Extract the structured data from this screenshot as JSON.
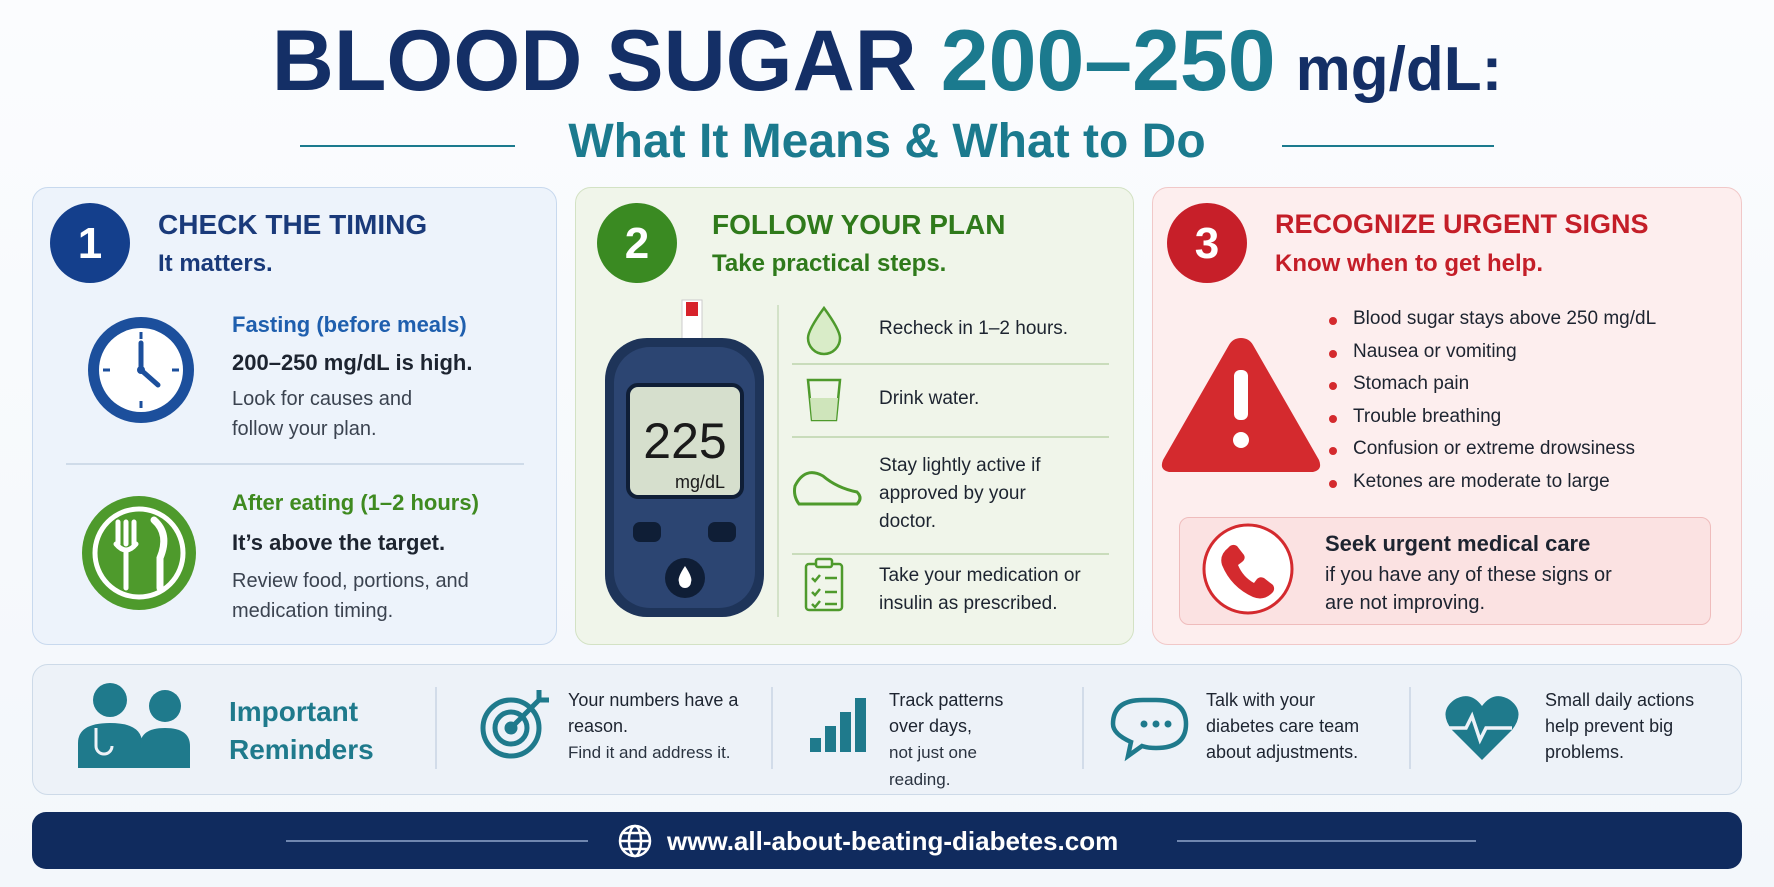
{
  "header": {
    "title_part1": "BLOOD SUGAR",
    "title_part2": "200–250",
    "title_part3": "mg/dL:",
    "subtitle": "What It Means & What to Do"
  },
  "panels": [
    {
      "number": "1",
      "title": "CHECK THE TIMING",
      "subtitle": "It matters.",
      "items": [
        {
          "heading": "Fasting (before meals)",
          "highlight": "200–250 mg/dL is high.",
          "text": "Look for causes and follow your plan."
        },
        {
          "heading": "After eating (1–2 hours)",
          "highlight": "It’s above the target.",
          "text": "Review food, portions, and medication timing."
        }
      ]
    },
    {
      "number": "2",
      "title": "FOLLOW YOUR PLAN",
      "subtitle": "Take practical steps.",
      "meter_reading": "225",
      "meter_unit": "mg/dL",
      "steps": [
        "Recheck in 1–2 hours.",
        "Drink water.",
        "Stay lightly active if approved by your doctor.",
        "Take your medication or insulin as prescribed."
      ]
    },
    {
      "number": "3",
      "title": "RECOGNIZE URGENT SIGNS",
      "subtitle": "Know when to get help.",
      "signs": [
        "Blood sugar stays above 250 mg/dL",
        "Nausea or vomiting",
        "Stomach pain",
        "Trouble breathing",
        "Confusion or extreme drowsiness",
        "Ketones are moderate to large"
      ],
      "callout": {
        "title": "Seek urgent medical care",
        "text": "if you have any of these signs or are not improving."
      }
    }
  ],
  "reminders": {
    "title": "Important Reminders",
    "items": [
      {
        "text": "Your numbers have a reason.",
        "note": "Find it and address it."
      },
      {
        "text": "Track patterns over days,",
        "note": "not just one reading."
      },
      {
        "text": "Talk with your diabetes care team about adjustments."
      },
      {
        "text": "Small daily actions help prevent big problems."
      }
    ]
  },
  "footer": {
    "url": "www.all-about-beating-diabetes.com"
  }
}
